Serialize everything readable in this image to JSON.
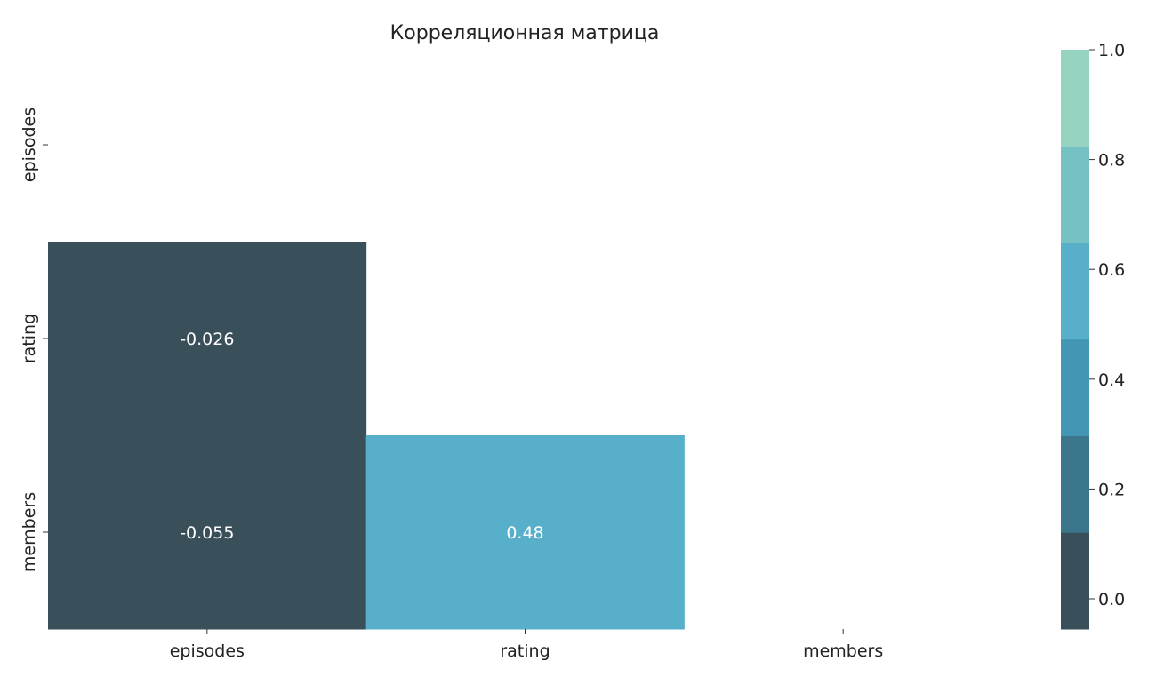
{
  "chart_data": {
    "type": "heatmap",
    "title": "Корреляционная матрица",
    "xlabel": "",
    "ylabel": "",
    "x_categories": [
      "episodes",
      "rating",
      "members"
    ],
    "y_categories": [
      "episodes",
      "rating",
      "members"
    ],
    "mask": "upper-triangle-including-diagonal",
    "cells": [
      {
        "row": "rating",
        "col": "episodes",
        "value": -0.026,
        "label": "-0.026"
      },
      {
        "row": "members",
        "col": "episodes",
        "value": -0.055,
        "label": "-0.055"
      },
      {
        "row": "members",
        "col": "rating",
        "value": 0.48,
        "label": "0.48"
      }
    ],
    "colorbar": {
      "range": [
        -0.055,
        1.0
      ],
      "ticks": [
        {
          "value": 0.0,
          "label": "0.0"
        },
        {
          "value": 0.2,
          "label": "0.2"
        },
        {
          "value": 0.4,
          "label": "0.4"
        },
        {
          "value": 0.6,
          "label": "0.6"
        },
        {
          "value": 0.8,
          "label": "0.8"
        },
        {
          "value": 1.0,
          "label": "1.0"
        }
      ],
      "bins": [
        {
          "from": -0.055,
          "to": 0.121,
          "color": "#39505a"
        },
        {
          "from": 0.121,
          "to": 0.297,
          "color": "#3c768c"
        },
        {
          "from": 0.297,
          "to": 0.473,
          "color": "#4397b5"
        },
        {
          "from": 0.473,
          "to": 0.648,
          "color": "#58afc9"
        },
        {
          "from": 0.648,
          "to": 0.824,
          "color": "#75c1c3"
        },
        {
          "from": 0.824,
          "to": 1.0,
          "color": "#96d3c1"
        }
      ]
    }
  }
}
